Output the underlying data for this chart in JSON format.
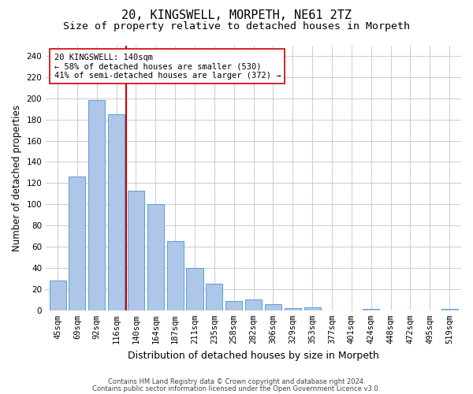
{
  "title": "20, KINGSWELL, MORPETH, NE61 2TZ",
  "subtitle": "Size of property relative to detached houses in Morpeth",
  "xlabel": "Distribution of detached houses by size in Morpeth",
  "ylabel": "Number of detached properties",
  "categories": [
    "45sqm",
    "69sqm",
    "92sqm",
    "116sqm",
    "140sqm",
    "164sqm",
    "187sqm",
    "211sqm",
    "235sqm",
    "258sqm",
    "282sqm",
    "306sqm",
    "329sqm",
    "353sqm",
    "377sqm",
    "401sqm",
    "424sqm",
    "448sqm",
    "472sqm",
    "495sqm",
    "519sqm"
  ],
  "values": [
    28,
    126,
    198,
    185,
    113,
    100,
    65,
    40,
    25,
    9,
    10,
    6,
    2,
    3,
    0,
    0,
    1,
    0,
    0,
    0,
    1
  ],
  "bar_color": "#aec6e8",
  "bar_edge_color": "#5a9fd4",
  "vline_color": "#cc0000",
  "annotation_line1": "20 KINGSWELL: 140sqm",
  "annotation_line2": "← 58% of detached houses are smaller (530)",
  "annotation_line3": "41% of semi-detached houses are larger (372) →",
  "annotation_box_color": "#ffffff",
  "annotation_box_edge_color": "#cc0000",
  "ylim": [
    0,
    250
  ],
  "yticks": [
    0,
    20,
    40,
    60,
    80,
    100,
    120,
    140,
    160,
    180,
    200,
    220,
    240
  ],
  "title_fontsize": 11,
  "subtitle_fontsize": 9.5,
  "xlabel_fontsize": 9,
  "ylabel_fontsize": 8.5,
  "tick_fontsize": 7.5,
  "annotation_fontsize": 7.5,
  "footer_line1": "Contains HM Land Registry data © Crown copyright and database right 2024.",
  "footer_line2": "Contains public sector information licensed under the Open Government Licence v3.0.",
  "background_color": "#ffffff",
  "grid_color": "#d0d0d0"
}
